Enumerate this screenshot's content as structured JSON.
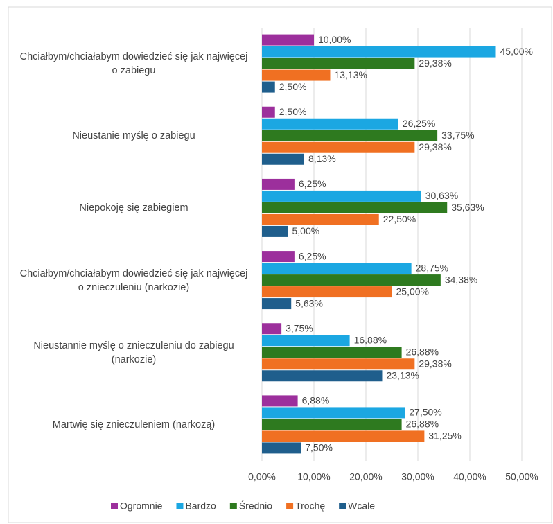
{
  "chart_data": {
    "type": "bar",
    "orientation": "horizontal",
    "categories": [
      "Chciałbym/chciałabym dowiedzieć się jak najwięcej o zabiegu",
      "Nieustanie myślę o zabiegu",
      "Niepokoję się zabiegiem",
      "Chciałbym/chciałabym dowiedzieć się jak najwięcej o znieczuleniu (narkozie)",
      "Nieustannie myślę o znieczuleniu do zabiegu (narkozie)",
      "Martwię się znieczuleniem (narkozą)"
    ],
    "series": [
      {
        "name": "Ogromnie",
        "color": "#9c2f9c",
        "values": [
          10,
          2.5,
          6.25,
          6.25,
          3.75,
          6.88
        ],
        "value_labels": [
          "10,00%",
          "2,50%",
          "6,25%",
          "6,25%",
          "3,75%",
          "6,88%"
        ]
      },
      {
        "name": "Bardzo",
        "color": "#1ba7e2",
        "values": [
          45,
          26.25,
          30.63,
          28.75,
          16.88,
          27.5
        ],
        "value_labels": [
          "45,00%",
          "26,25%",
          "30,63%",
          "28,75%",
          "16,88%",
          "27,50%"
        ]
      },
      {
        "name": "Średnio",
        "color": "#2e7a1f",
        "values": [
          29.38,
          33.75,
          35.63,
          34.38,
          26.88,
          26.88
        ],
        "value_labels": [
          "29,38%",
          "33,75%",
          "35,63%",
          "34,38%",
          "26,88%",
          "26,88%"
        ]
      },
      {
        "name": "Trochę",
        "color": "#f07022",
        "values": [
          13.13,
          29.38,
          22.5,
          25,
          29.38,
          31.25
        ],
        "value_labels": [
          "13,13%",
          "29,38%",
          "22,50%",
          "25,00%",
          "29,38%",
          "31,25%"
        ]
      },
      {
        "name": "Wcale",
        "color": "#1f5e8c",
        "values": [
          2.5,
          8.13,
          5,
          5.63,
          23.13,
          7.5
        ],
        "value_labels": [
          "2,50%",
          "8,13%",
          "5,00%",
          "5,63%",
          "23,13%",
          "7,50%"
        ]
      }
    ],
    "xlim": [
      0,
      50
    ],
    "xticks": [
      {
        "value": 0,
        "label": "0,00%"
      },
      {
        "value": 10,
        "label": "10,00%"
      },
      {
        "value": 20,
        "label": "20,00%"
      },
      {
        "value": 30,
        "label": "30,00%"
      },
      {
        "value": 40,
        "label": "40,00%"
      },
      {
        "value": 50,
        "label": "50,00%"
      }
    ],
    "grid": true,
    "legend": "bottom"
  }
}
